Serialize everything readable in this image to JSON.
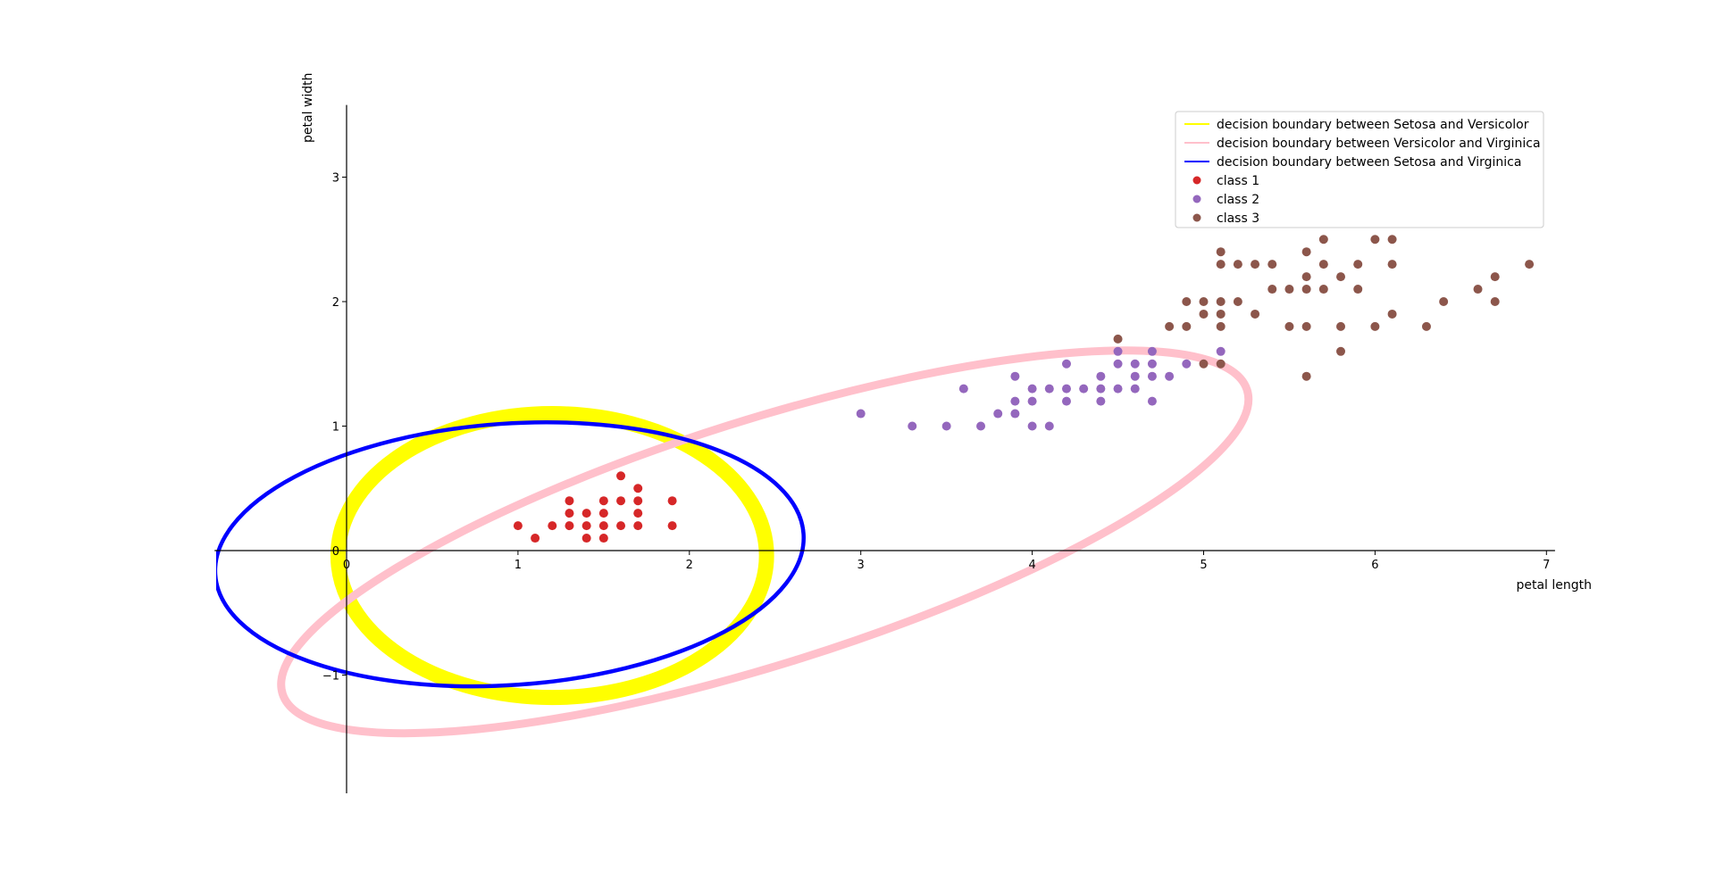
{
  "chart_data": {
    "type": "scatter",
    "title": "",
    "xlabel": "petal length",
    "ylabel": "petal width",
    "xlim": [
      -0.77,
      7.05
    ],
    "ylim": [
      -1.95,
      3.58
    ],
    "x_ticks": [
      0,
      1,
      2,
      3,
      4,
      5,
      6,
      7
    ],
    "y_ticks": [
      -1,
      0,
      1,
      2,
      3
    ],
    "grid": false,
    "legend_position": "top-right",
    "boundaries": [
      {
        "name": "decision boundary between Setosa and Versicolor",
        "color": "#ffff00",
        "shape": "ellipse",
        "center": [
          1.2,
          -0.04
        ],
        "semi_axes": [
          1.25,
          1.14
        ],
        "rotation_deg": 0
      },
      {
        "name": "decision boundary between Versicolor and Virginica",
        "color": "#ffc0cb",
        "shape": "ellipse",
        "center": [
          2.44,
          0.07
        ],
        "semi_axes": [
          2.95,
          0.98
        ],
        "rotation_deg": 17.5
      },
      {
        "name": "decision boundary between Setosa and Virginica",
        "color": "#0000ff",
        "shape": "ellipse",
        "center": [
          0.95,
          -0.03
        ],
        "semi_axes": [
          1.72,
          1.05
        ],
        "rotation_deg": 4
      }
    ],
    "series": [
      {
        "name": "class 1",
        "color": "#d62728",
        "points": [
          [
            1.0,
            0.2
          ],
          [
            1.1,
            0.1
          ],
          [
            1.2,
            0.2
          ],
          [
            1.3,
            0.2
          ],
          [
            1.3,
            0.3
          ],
          [
            1.3,
            0.4
          ],
          [
            1.4,
            0.1
          ],
          [
            1.4,
            0.2
          ],
          [
            1.4,
            0.3
          ],
          [
            1.5,
            0.1
          ],
          [
            1.5,
            0.2
          ],
          [
            1.5,
            0.3
          ],
          [
            1.5,
            0.4
          ],
          [
            1.6,
            0.2
          ],
          [
            1.6,
            0.4
          ],
          [
            1.6,
            0.6
          ],
          [
            1.7,
            0.2
          ],
          [
            1.7,
            0.3
          ],
          [
            1.7,
            0.4
          ],
          [
            1.7,
            0.5
          ],
          [
            1.9,
            0.2
          ],
          [
            1.9,
            0.4
          ]
        ]
      },
      {
        "name": "class 2",
        "color": "#9467bd",
        "points": [
          [
            3.0,
            1.1
          ],
          [
            3.3,
            1.0
          ],
          [
            3.5,
            1.0
          ],
          [
            3.6,
            1.3
          ],
          [
            3.7,
            1.0
          ],
          [
            3.8,
            1.1
          ],
          [
            3.9,
            1.1
          ],
          [
            3.9,
            1.2
          ],
          [
            3.9,
            1.4
          ],
          [
            4.0,
            1.0
          ],
          [
            4.0,
            1.2
          ],
          [
            4.0,
            1.3
          ],
          [
            4.1,
            1.0
          ],
          [
            4.1,
            1.3
          ],
          [
            4.2,
            1.2
          ],
          [
            4.2,
            1.3
          ],
          [
            4.2,
            1.5
          ],
          [
            4.3,
            1.3
          ],
          [
            4.4,
            1.2
          ],
          [
            4.4,
            1.3
          ],
          [
            4.4,
            1.4
          ],
          [
            4.5,
            1.3
          ],
          [
            4.5,
            1.5
          ],
          [
            4.5,
            1.6
          ],
          [
            4.6,
            1.3
          ],
          [
            4.6,
            1.4
          ],
          [
            4.6,
            1.5
          ],
          [
            4.7,
            1.2
          ],
          [
            4.7,
            1.4
          ],
          [
            4.7,
            1.5
          ],
          [
            4.7,
            1.6
          ],
          [
            4.8,
            1.4
          ],
          [
            4.9,
            1.5
          ],
          [
            5.1,
            1.6
          ]
        ]
      },
      {
        "name": "class 3",
        "color": "#8c564b",
        "points": [
          [
            4.5,
            1.7
          ],
          [
            4.8,
            1.8
          ],
          [
            4.9,
            1.8
          ],
          [
            4.9,
            2.0
          ],
          [
            5.0,
            1.5
          ],
          [
            5.0,
            1.9
          ],
          [
            5.0,
            2.0
          ],
          [
            5.1,
            1.5
          ],
          [
            5.1,
            1.8
          ],
          [
            5.1,
            1.9
          ],
          [
            5.1,
            2.0
          ],
          [
            5.1,
            2.3
          ],
          [
            5.1,
            2.4
          ],
          [
            5.2,
            2.0
          ],
          [
            5.2,
            2.3
          ],
          [
            5.3,
            1.9
          ],
          [
            5.3,
            2.3
          ],
          [
            5.4,
            2.1
          ],
          [
            5.4,
            2.3
          ],
          [
            5.5,
            1.8
          ],
          [
            5.5,
            2.1
          ],
          [
            5.6,
            1.4
          ],
          [
            5.6,
            1.8
          ],
          [
            5.6,
            2.1
          ],
          [
            5.6,
            2.2
          ],
          [
            5.6,
            2.4
          ],
          [
            5.7,
            2.1
          ],
          [
            5.7,
            2.3
          ],
          [
            5.7,
            2.5
          ],
          [
            5.8,
            1.6
          ],
          [
            5.8,
            1.8
          ],
          [
            5.8,
            2.2
          ],
          [
            5.9,
            2.1
          ],
          [
            5.9,
            2.3
          ],
          [
            6.0,
            1.8
          ],
          [
            6.0,
            2.5
          ],
          [
            6.1,
            1.9
          ],
          [
            6.1,
            2.3
          ],
          [
            6.1,
            2.5
          ],
          [
            6.3,
            1.8
          ],
          [
            6.4,
            2.0
          ],
          [
            6.6,
            2.1
          ],
          [
            6.7,
            2.0
          ],
          [
            6.7,
            2.2
          ],
          [
            6.9,
            2.3
          ]
        ]
      }
    ]
  }
}
